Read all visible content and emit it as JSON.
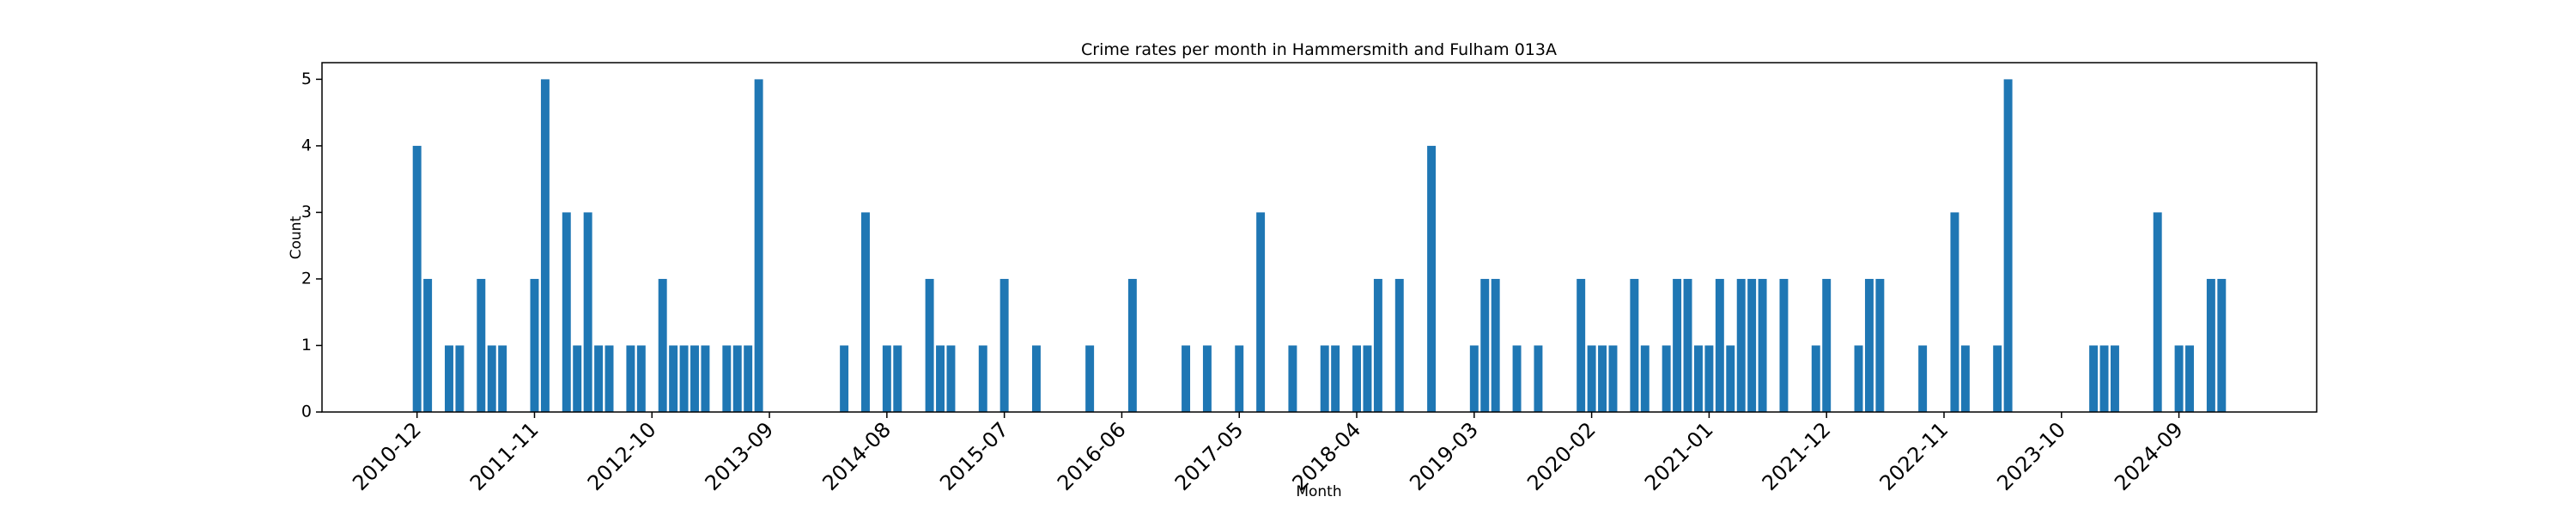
{
  "chart_data": {
    "type": "bar",
    "title": "Crime rates per month in Hammersmith and Fulham 013A",
    "x_label": "Month",
    "y_label": "Count",
    "color": "#1f77b4",
    "categories": [
      "2010-12",
      null,
      null,
      null,
      null,
      null,
      null,
      null,
      null,
      null,
      null,
      "2011-11",
      null,
      null,
      null,
      null,
      null,
      null,
      null,
      null,
      null,
      null,
      "2012-10",
      null,
      null,
      null,
      null,
      null,
      null,
      null,
      null,
      null,
      null,
      "2013-09",
      null,
      null,
      null,
      null,
      null,
      null,
      null,
      null,
      null,
      null,
      "2014-08",
      null,
      null,
      null,
      null,
      null,
      null,
      null,
      null,
      null,
      null,
      "2015-07",
      null,
      null,
      null,
      null,
      null,
      null,
      null,
      null,
      null,
      null,
      "2016-06",
      null,
      null,
      null,
      null,
      null,
      null,
      null,
      null,
      null,
      null,
      "2017-05",
      null,
      null,
      null,
      null,
      null,
      null,
      null,
      null,
      null,
      null,
      "2018-04",
      null,
      null,
      null,
      null,
      null,
      null,
      null,
      null,
      null,
      null,
      "2019-03",
      null,
      null,
      null,
      null,
      null,
      null,
      null,
      null,
      null,
      null,
      "2020-02",
      null,
      null,
      null,
      null,
      null,
      null,
      null,
      null,
      null,
      null,
      "2021-01",
      null,
      null,
      null,
      null,
      null,
      null,
      null,
      null,
      null,
      null,
      "2021-12",
      null,
      null,
      null,
      null,
      null,
      null,
      null,
      null,
      null,
      null,
      "2022-11",
      null,
      null,
      null,
      null,
      null,
      null,
      null,
      null,
      null,
      null,
      "2023-10",
      null,
      null,
      null,
      null,
      null,
      null,
      null,
      null,
      null,
      null,
      "2024-09",
      null,
      null,
      null,
      null
    ],
    "values": [
      4,
      2,
      0,
      1,
      1,
      0,
      2,
      1,
      1,
      0,
      0,
      2,
      5,
      0,
      3,
      1,
      3,
      1,
      1,
      0,
      1,
      1,
      0,
      2,
      1,
      1,
      1,
      1,
      0,
      1,
      1,
      1,
      5,
      0,
      0,
      0,
      0,
      0,
      0,
      0,
      1,
      0,
      3,
      0,
      1,
      1,
      0,
      0,
      2,
      1,
      1,
      0,
      0,
      1,
      0,
      2,
      0,
      0,
      1,
      0,
      0,
      0,
      0,
      1,
      0,
      0,
      0,
      2,
      0,
      0,
      0,
      0,
      1,
      0,
      1,
      0,
      0,
      1,
      0,
      3,
      0,
      0,
      1,
      0,
      0,
      1,
      1,
      0,
      1,
      1,
      2,
      0,
      2,
      0,
      0,
      4,
      0,
      0,
      0,
      1,
      2,
      2,
      0,
      1,
      0,
      1,
      0,
      0,
      0,
      2,
      1,
      1,
      1,
      0,
      2,
      1,
      0,
      1,
      2,
      2,
      1,
      1,
      2,
      1,
      2,
      2,
      2,
      0,
      2,
      0,
      0,
      1,
      2,
      0,
      0,
      1,
      2,
      2,
      0,
      0,
      0,
      1,
      0,
      0,
      3,
      1,
      0,
      0,
      1,
      5,
      0,
      0,
      0,
      0,
      0,
      0,
      0,
      1,
      1,
      1,
      0,
      0,
      0,
      3,
      0,
      1,
      1,
      0,
      2,
      2
    ],
    "ylim": [
      0,
      5.25
    ],
    "yticks": [
      0,
      1,
      2,
      3,
      4,
      5
    ],
    "xlim": [
      -8.9,
      177.9
    ],
    "grid": false
  }
}
